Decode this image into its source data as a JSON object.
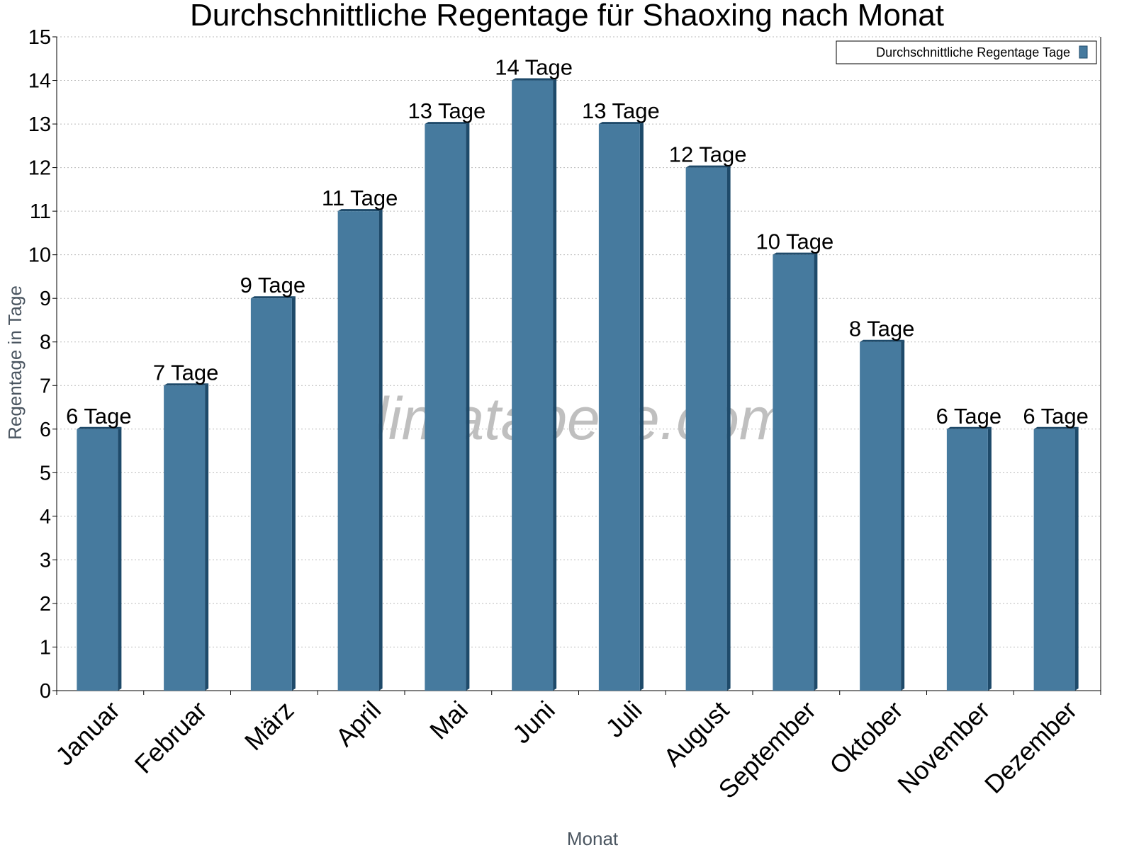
{
  "chart_data": {
    "type": "bar",
    "title": "Durchschnittliche Regentage für Shaoxing nach Monat",
    "x_label": "Monat",
    "y_label": "Regentage in Tage",
    "watermark": "klimatabelle.com",
    "categories": [
      "Januar",
      "Februar",
      "März",
      "April",
      "Mai",
      "Juni",
      "Juli",
      "August",
      "September",
      "Oktober",
      "November",
      "Dezember"
    ],
    "series": [
      {
        "name": "Durchschnittliche Regentage Tage",
        "color": "#467a9e",
        "values": [
          6,
          7,
          9,
          11,
          13,
          14,
          13,
          12,
          10,
          8,
          6,
          6
        ],
        "value_labels": [
          "6 Tage",
          "7 Tage",
          "9 Tage",
          "11 Tage",
          "13 Tage",
          "14 Tage",
          "13 Tage",
          "12 Tage",
          "10 Tage",
          "8 Tage",
          "6 Tage",
          "6 Tage"
        ]
      }
    ],
    "ylim": [
      0,
      15
    ],
    "yticks": [
      0,
      1,
      2,
      3,
      4,
      5,
      6,
      7,
      8,
      9,
      10,
      11,
      12,
      13,
      14,
      15
    ],
    "grid": true,
    "legend": "top-right"
  }
}
